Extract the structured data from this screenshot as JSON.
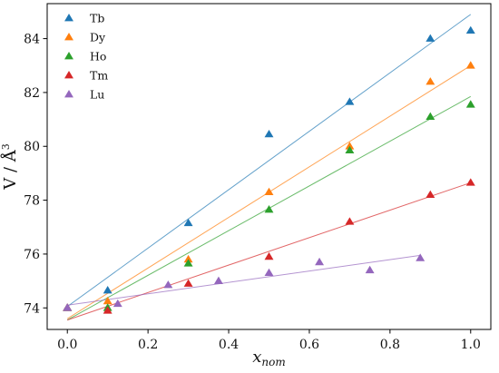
{
  "chart_data": {
    "type": "scatter",
    "title": "",
    "xlabel_base": "x",
    "xlabel_sub": "nom",
    "ylabel_main": "V / Å",
    "ylabel_sup": "3",
    "xlim": [
      -0.05,
      1.05
    ],
    "ylim": [
      73.2,
      85.3
    ],
    "xticks": [
      0.0,
      0.2,
      0.4,
      0.6,
      0.8,
      1.0
    ],
    "xtick_labels": [
      "0.0",
      "0.2",
      "0.4",
      "0.6",
      "0.8",
      "1.0"
    ],
    "yticks": [
      74,
      76,
      78,
      80,
      82,
      84
    ],
    "ytick_labels": [
      "74",
      "76",
      "78",
      "80",
      "82",
      "84"
    ],
    "grid": false,
    "legend_position": "top-left",
    "series": [
      {
        "name": "Tb",
        "color": "#1f77b4",
        "marker": "triangle",
        "x": [
          0.0,
          0.1,
          0.3,
          0.5,
          0.7,
          0.9,
          1.0
        ],
        "y": [
          74.0,
          74.65,
          77.15,
          80.45,
          81.65,
          84.0,
          84.3
        ],
        "fit": {
          "x": [
            0.0,
            1.0
          ],
          "y": [
            74.05,
            84.9
          ]
        }
      },
      {
        "name": "Dy",
        "color": "#ff7f0e",
        "marker": "triangle",
        "x": [
          0.0,
          0.1,
          0.3,
          0.5,
          0.7,
          0.9,
          1.0
        ],
        "y": [
          74.0,
          74.25,
          75.8,
          78.3,
          80.0,
          82.4,
          83.0
        ],
        "fit": {
          "x": [
            0.0,
            1.0
          ],
          "y": [
            73.6,
            83.0
          ]
        }
      },
      {
        "name": "Ho",
        "color": "#2ca02c",
        "marker": "triangle",
        "x": [
          0.0,
          0.1,
          0.3,
          0.5,
          0.7,
          0.9,
          1.0
        ],
        "y": [
          74.0,
          74.0,
          75.65,
          77.65,
          79.85,
          81.1,
          81.55
        ],
        "fit": {
          "x": [
            0.0,
            1.0
          ],
          "y": [
            73.55,
            81.85
          ]
        }
      },
      {
        "name": "Tm",
        "color": "#d62728",
        "marker": "triangle",
        "x": [
          0.0,
          0.1,
          0.3,
          0.5,
          0.7,
          0.9,
          1.0
        ],
        "y": [
          74.0,
          73.9,
          74.9,
          75.9,
          77.2,
          78.2,
          78.65
        ],
        "fit": {
          "x": [
            0.0,
            1.0
          ],
          "y": [
            73.55,
            78.65
          ]
        }
      },
      {
        "name": "Lu",
        "color": "#9467bd",
        "marker": "triangle",
        "x": [
          0.0,
          0.125,
          0.25,
          0.375,
          0.5,
          0.625,
          0.75,
          0.875
        ],
        "y": [
          74.0,
          74.15,
          74.85,
          75.0,
          75.3,
          75.7,
          75.4,
          75.85
        ],
        "fit": {
          "x": [
            0.0,
            0.875
          ],
          "y": [
            74.1,
            75.95
          ]
        }
      }
    ]
  }
}
